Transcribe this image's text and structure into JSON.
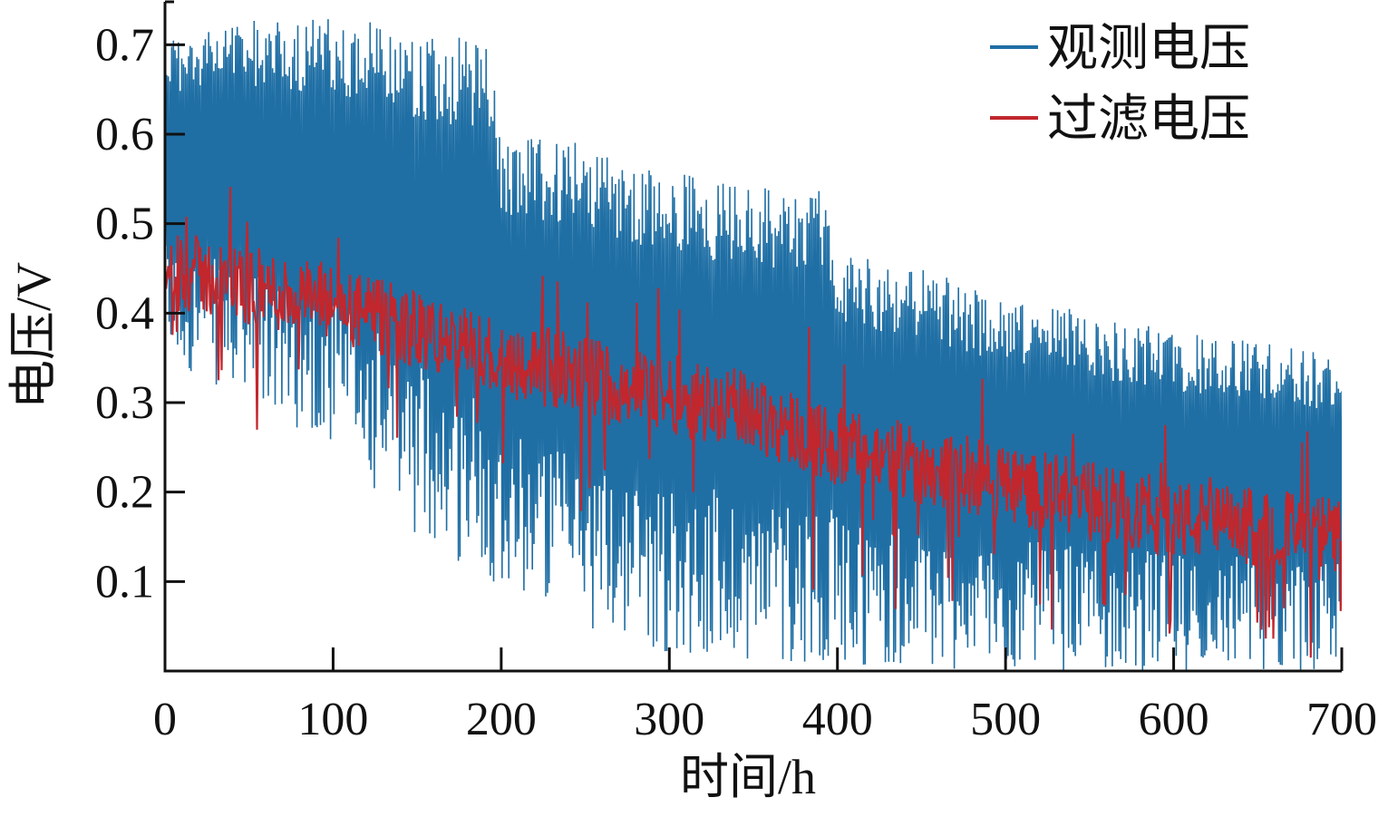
{
  "chart_data": {
    "type": "line",
    "title": "",
    "xlabel": "时间/h",
    "ylabel": "电压/V",
    "xlim": [
      0,
      700
    ],
    "ylim": [
      0,
      0.75
    ],
    "xticks": [
      "0",
      "100",
      "200",
      "300",
      "400",
      "500",
      "600",
      "700"
    ],
    "yticks": [
      "0.1",
      "0.2",
      "0.3",
      "0.4",
      "0.5",
      "0.6",
      "0.7"
    ],
    "grid": false,
    "legend": "top-right",
    "series": [
      {
        "name": "观测电压",
        "color": "#1f6fa5",
        "envelope": [
          {
            "x": 0,
            "min": 0.35,
            "max": 0.71
          },
          {
            "x": 50,
            "min": 0.3,
            "max": 0.73
          },
          {
            "x": 100,
            "min": 0.25,
            "max": 0.73
          },
          {
            "x": 150,
            "min": 0.15,
            "max": 0.72
          },
          {
            "x": 192,
            "min": 0.1,
            "max": 0.7
          },
          {
            "x": 200,
            "min": 0.1,
            "max": 0.6
          },
          {
            "x": 250,
            "min": 0.05,
            "max": 0.59
          },
          {
            "x": 300,
            "min": 0.02,
            "max": 0.56
          },
          {
            "x": 350,
            "min": 0.01,
            "max": 0.55
          },
          {
            "x": 392,
            "min": 0.01,
            "max": 0.54
          },
          {
            "x": 400,
            "min": 0.01,
            "max": 0.47
          },
          {
            "x": 450,
            "min": 0.0,
            "max": 0.45
          },
          {
            "x": 500,
            "min": 0.0,
            "max": 0.42
          },
          {
            "x": 550,
            "min": 0.0,
            "max": 0.4
          },
          {
            "x": 600,
            "min": 0.0,
            "max": 0.38
          },
          {
            "x": 650,
            "min": 0.0,
            "max": 0.37
          },
          {
            "x": 700,
            "min": 0.0,
            "max": 0.35
          }
        ]
      },
      {
        "name": "过滤电压",
        "color": "#c1272d",
        "trend": [
          {
            "x": 0,
            "y": 0.45
          },
          {
            "x": 50,
            "y": 0.43
          },
          {
            "x": 100,
            "y": 0.41
          },
          {
            "x": 150,
            "y": 0.38
          },
          {
            "x": 200,
            "y": 0.35
          },
          {
            "x": 250,
            "y": 0.33
          },
          {
            "x": 300,
            "y": 0.31
          },
          {
            "x": 350,
            "y": 0.29
          },
          {
            "x": 400,
            "y": 0.25
          },
          {
            "x": 450,
            "y": 0.23
          },
          {
            "x": 500,
            "y": 0.21
          },
          {
            "x": 550,
            "y": 0.19
          },
          {
            "x": 600,
            "y": 0.17
          },
          {
            "x": 650,
            "y": 0.16
          },
          {
            "x": 700,
            "y": 0.15
          }
        ]
      }
    ]
  }
}
